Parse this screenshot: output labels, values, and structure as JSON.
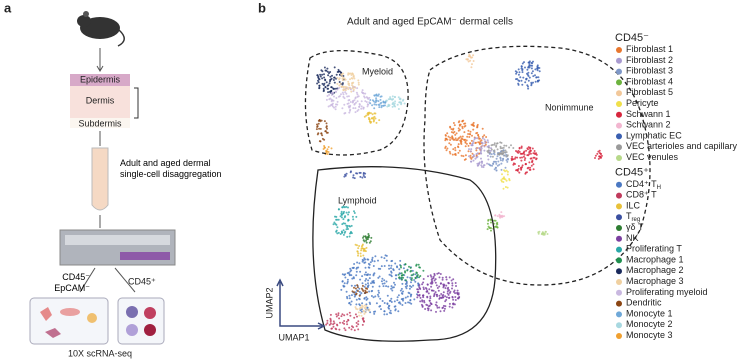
{
  "panel_a": {
    "label": "a",
    "layers": [
      "Epidermis",
      "Dermis",
      "Subdermis"
    ],
    "step": "Adult and aged dermal single-cell disaggregation",
    "branch_left": "CD45⁻ EpCAM⁻",
    "branch_right": "CD45⁺",
    "method": "10X scRNA-seq"
  },
  "panel_b": {
    "label": "b",
    "title": "Adult and aged EpCAM⁻ dermal cells",
    "regions": [
      "Myeloid",
      "Nonimmune",
      "Lymphoid"
    ],
    "axis_y": "UMAP2",
    "axis_x": "UMAP1",
    "legend": [
      {
        "group": "CD45⁻",
        "items": [
          {
            "text": "Fibroblast 1",
            "color": "#e8772e"
          },
          {
            "text": "Fibroblast 2",
            "color": "#a99bd0"
          },
          {
            "text": "Fibroblast 3",
            "color": "#7f98c8"
          },
          {
            "text": "Fibroblast 4",
            "color": "#6db33f"
          },
          {
            "text": "Fibroblast 5",
            "color": "#f2c89a"
          },
          {
            "text": "Pericyte",
            "color": "#f0e04a"
          },
          {
            "text": "Schwann 1",
            "color": "#d7263d"
          },
          {
            "text": "Schwann 2",
            "color": "#f2b6d0"
          },
          {
            "text": "Lymphatic EC",
            "color": "#3a5fb0"
          },
          {
            "text": "VEC arterioles and capillary",
            "color": "#9a9a9a"
          },
          {
            "text": "VEC venules",
            "color": "#b7d98a"
          }
        ]
      },
      {
        "group": "CD45⁺",
        "items": [
          {
            "text": "CD4⁺ T",
            "sub": "H",
            "color": "#4a78c2"
          },
          {
            "text": "CD8⁺ T",
            "color": "#c03a5c"
          },
          {
            "text": "ILC",
            "color": "#e8c13a"
          },
          {
            "text": "T",
            "sub": "reg",
            "color": "#3a4fa0"
          },
          {
            "text": "γδ T",
            "color": "#2e7d32"
          },
          {
            "text": "NK",
            "color": "#7b3fa0"
          },
          {
            "text": "Proliferating T",
            "color": "#2aa8a8"
          },
          {
            "text": "Macrophage 1",
            "color": "#1e8f4e"
          },
          {
            "text": "Macrophage 2",
            "color": "#1a2a5c"
          },
          {
            "text": "Macrophage 3",
            "color": "#f0d0a0"
          },
          {
            "text": "Proliferating myeloid",
            "color": "#c9b8e0"
          },
          {
            "text": "Dendritic",
            "color": "#8b4513"
          },
          {
            "text": "Monocyte 1",
            "color": "#6fa8d8"
          },
          {
            "text": "Monocyte 2",
            "color": "#a8d8e0"
          },
          {
            "text": "Monocyte 3",
            "color": "#f0a030"
          }
        ]
      }
    ]
  }
}
